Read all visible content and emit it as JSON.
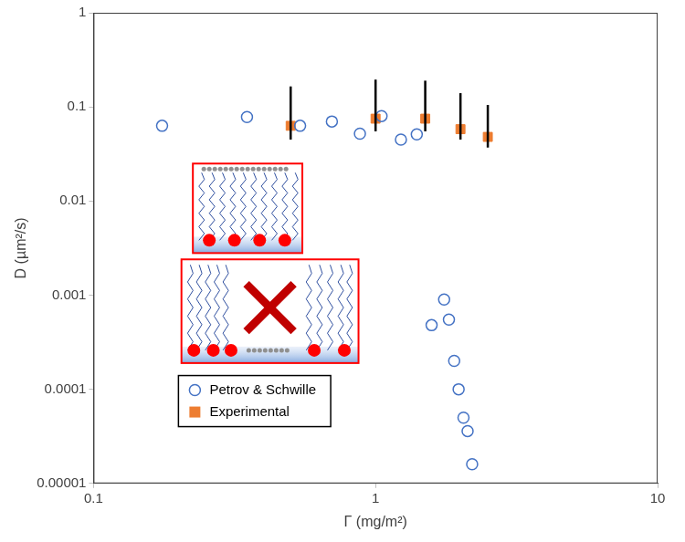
{
  "chart_data": {
    "type": "scatter",
    "x_label": "Γ (mg/m²)",
    "y_label": "D (µm²/s)",
    "log": true,
    "grid": false,
    "legend": "lower left",
    "xlim": [
      0.1,
      10
    ],
    "xticks": [
      0.1,
      1,
      10
    ],
    "ylim": [
      1e-05,
      1
    ],
    "yticks": [
      1e-05,
      0.0001,
      0.001,
      0.01,
      0.1,
      1
    ],
    "series": [
      {
        "name": "Petrov & Schwille",
        "color": "#4472c4",
        "marker": "circle_open",
        "x": [
          0.175,
          0.35,
          0.54,
          0.7,
          0.88,
          1.05,
          1.23,
          1.4,
          1.58,
          1.75,
          1.82,
          1.9,
          1.97,
          2.05,
          2.12,
          2.2
        ],
        "values": [
          0.063,
          0.078,
          0.063,
          0.07,
          0.052,
          0.08,
          0.045,
          0.051,
          0.00048,
          0.0009,
          0.00055,
          0.0002,
          0.0001,
          5e-05,
          3.6e-05,
          1.6e-05
        ]
      },
      {
        "name": "Experimental",
        "color": "#ed7d31",
        "marker": "square",
        "x": [
          0.5,
          1,
          1.5,
          2,
          2.5
        ],
        "values": [
          0.063,
          0.075,
          0.075,
          0.058,
          0.048
        ],
        "error_low": [
          0.045,
          0.055,
          0.055,
          0.045,
          0.037
        ],
        "error_high": [
          0.165,
          0.195,
          0.19,
          0.14,
          0.105
        ]
      }
    ]
  }
}
